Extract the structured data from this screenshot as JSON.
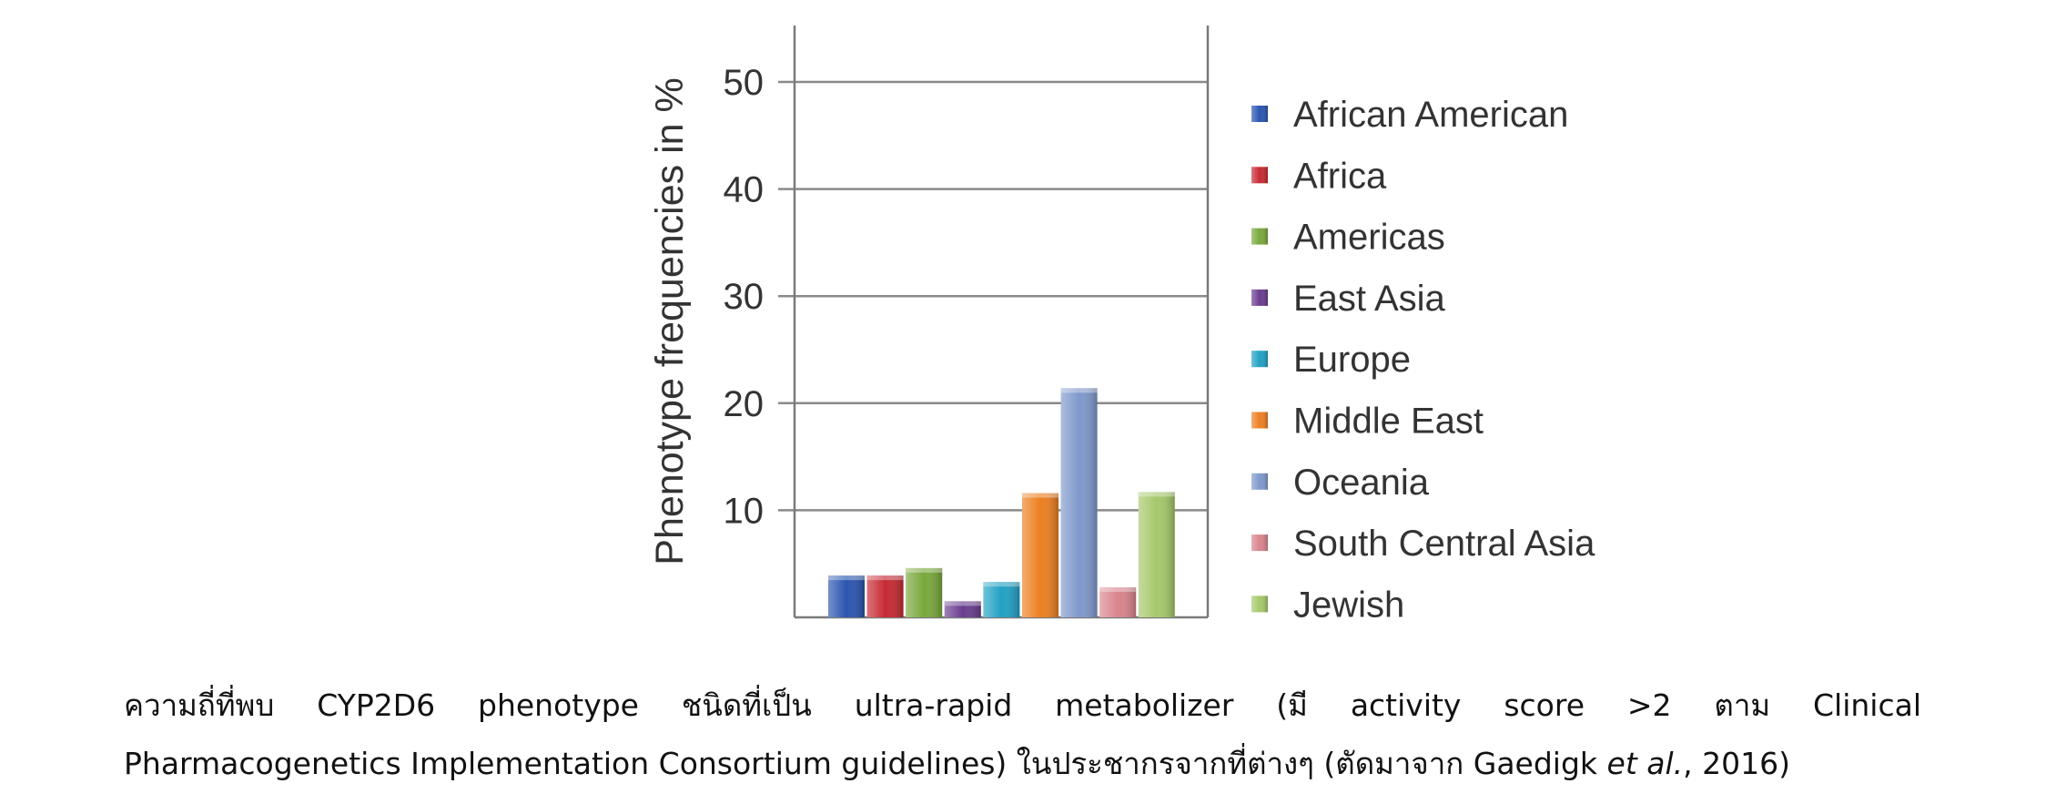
{
  "chart_data": {
    "type": "bar",
    "ylabel": "Phenotype frequencies in %",
    "xlabel": "",
    "ylim": [
      0,
      55
    ],
    "yticks": [
      10,
      20,
      30,
      40,
      50
    ],
    "grid": true,
    "legend_position": "right",
    "categories": [
      "African American",
      "Africa",
      "Americas",
      "East Asia",
      "Europe",
      "Middle East",
      "Oceania",
      "South Central Asia",
      "Jewish"
    ],
    "values": [
      3.9,
      3.9,
      4.6,
      1.5,
      3.3,
      11.6,
      21.4,
      2.8,
      11.7
    ],
    "colors": [
      "#2a55b0",
      "#c62a33",
      "#7aa83c",
      "#6a3d8f",
      "#22a1c4",
      "#ec7f21",
      "#7f99cc",
      "#d9848c",
      "#a6c86a"
    ]
  },
  "caption": {
    "line1_words": [
      "ความถี่ที่พบ",
      "CYP2D6",
      "phenotype",
      "ชนิดที่เป็น",
      "ultra-rapid",
      "metabolizer",
      "(มี",
      "activity",
      "score",
      ">2",
      "ตาม",
      "Clinical"
    ],
    "line2_start": "Pharmacogenetics Implementation Consortium guidelines) ในประชากรจากที่ต่างๆ   (ตัดมาจาก Gaedigk ",
    "line2_italic": "et al.",
    "line2_end": ", 2016)"
  }
}
